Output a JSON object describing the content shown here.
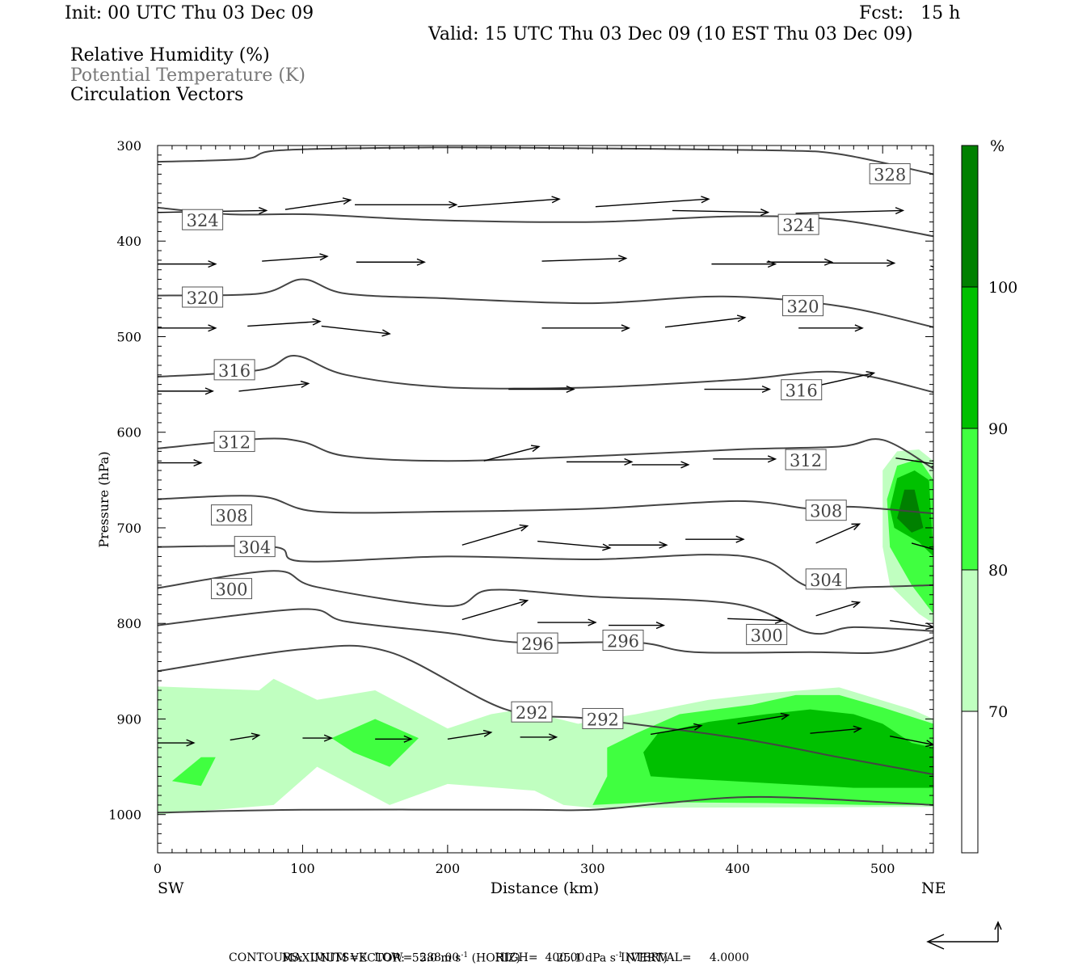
{
  "header": {
    "init": "Init: 00 UTC Thu 03 Dec 09",
    "fcst": "Fcst:   15 h",
    "valid": "Valid: 15 UTC Thu 03 Dec 09 (10 EST Thu 03 Dec 09)",
    "fields": [
      "Relative Humidity (%)",
      "Potential Temperature (K)",
      "Circulation Vectors"
    ]
  },
  "chart_data": {
    "type": "contour-cross-section",
    "xlabel": "Distance (km)",
    "ylabel": "Pressure (hPa)",
    "x_left_label": "SW",
    "x_right_label": "NE",
    "xlim": [
      0,
      535
    ],
    "ylim": [
      1040,
      300
    ],
    "x_ticks": [
      0,
      100,
      200,
      300,
      400,
      500
    ],
    "y_ticks": [
      300,
      400,
      500,
      600,
      700,
      800,
      900,
      1000
    ],
    "colorbar": {
      "unit": "%",
      "levels": [
        70,
        80,
        90,
        100
      ],
      "colors": [
        "#ffffff",
        "#c0ffc0",
        "#40ff40",
        "#00c000",
        "#008000"
      ]
    },
    "theta_labels": [
      {
        "value": "328",
        "x": 505,
        "p": 330
      },
      {
        "value": "324",
        "x": 31,
        "p": 378
      },
      {
        "value": "324",
        "x": 442,
        "p": 383
      },
      {
        "value": "320",
        "x": 31,
        "p": 459
      },
      {
        "value": "320",
        "x": 445,
        "p": 468
      },
      {
        "value": "316",
        "x": 53,
        "p": 535
      },
      {
        "value": "316",
        "x": 444,
        "p": 556
      },
      {
        "value": "312",
        "x": 53,
        "p": 610
      },
      {
        "value": "312",
        "x": 447,
        "p": 629
      },
      {
        "value": "308",
        "x": 51,
        "p": 687
      },
      {
        "value": "308",
        "x": 461,
        "p": 682
      },
      {
        "value": "304",
        "x": 67,
        "p": 720
      },
      {
        "value": "304",
        "x": 461,
        "p": 754
      },
      {
        "value": "300",
        "x": 51,
        "p": 764
      },
      {
        "value": "300",
        "x": 420,
        "p": 812
      },
      {
        "value": "296",
        "x": 262,
        "p": 821
      },
      {
        "value": "296",
        "x": 321,
        "p": 818
      },
      {
        "value": "292",
        "x": 258,
        "p": 893
      },
      {
        "value": "292",
        "x": 307,
        "p": 900
      }
    ],
    "theta_lines": [
      {
        "value": 328,
        "pts": [
          [
            0,
            317
          ],
          [
            60,
            314
          ],
          [
            85,
            305
          ],
          [
            190,
            302
          ],
          [
            300,
            303
          ],
          [
            420,
            305
          ],
          [
            470,
            309
          ],
          [
            535,
            330
          ]
        ]
      },
      {
        "value": 324,
        "pts": [
          [
            0,
            365
          ],
          [
            50,
            372
          ],
          [
            105,
            372
          ],
          [
            190,
            378
          ],
          [
            300,
            380
          ],
          [
            400,
            374
          ],
          [
            470,
            378
          ],
          [
            535,
            395
          ]
        ]
      },
      {
        "value": 320,
        "pts": [
          [
            0,
            457
          ],
          [
            70,
            455
          ],
          [
            100,
            440
          ],
          [
            130,
            455
          ],
          [
            200,
            460
          ],
          [
            300,
            465
          ],
          [
            390,
            458
          ],
          [
            470,
            468
          ],
          [
            535,
            490
          ]
        ]
      },
      {
        "value": 316,
        "pts": [
          [
            0,
            542
          ],
          [
            70,
            535
          ],
          [
            95,
            520
          ],
          [
            130,
            540
          ],
          [
            200,
            553
          ],
          [
            300,
            553
          ],
          [
            400,
            545
          ],
          [
            470,
            537
          ],
          [
            535,
            558
          ]
        ]
      },
      {
        "value": 312,
        "pts": [
          [
            0,
            617
          ],
          [
            70,
            607
          ],
          [
            100,
            610
          ],
          [
            130,
            625
          ],
          [
            200,
            630
          ],
          [
            300,
            625
          ],
          [
            400,
            618
          ],
          [
            470,
            615
          ],
          [
            500,
            608
          ],
          [
            535,
            638
          ]
        ]
      },
      {
        "value": 308,
        "pts": [
          [
            0,
            670
          ],
          [
            70,
            667
          ],
          [
            110,
            683
          ],
          [
            200,
            683
          ],
          [
            300,
            680
          ],
          [
            400,
            672
          ],
          [
            450,
            680
          ],
          [
            480,
            678
          ],
          [
            535,
            685
          ]
        ]
      },
      {
        "value": 304,
        "pts": [
          [
            0,
            720
          ],
          [
            80,
            720
          ],
          [
            100,
            735
          ],
          [
            200,
            730
          ],
          [
            300,
            733
          ],
          [
            380,
            728
          ],
          [
            420,
            735
          ],
          [
            450,
            762
          ],
          [
            490,
            762
          ],
          [
            535,
            760
          ]
        ]
      },
      {
        "value": 300,
        "pts": [
          [
            0,
            763
          ],
          [
            80,
            745
          ],
          [
            110,
            762
          ],
          [
            200,
            782
          ],
          [
            230,
            765
          ],
          [
            300,
            772
          ],
          [
            400,
            780
          ],
          [
            450,
            810
          ],
          [
            480,
            804
          ],
          [
            535,
            808
          ]
        ]
      },
      {
        "value": 296,
        "pts": [
          [
            0,
            802
          ],
          [
            100,
            785
          ],
          [
            130,
            798
          ],
          [
            200,
            810
          ],
          [
            250,
            820
          ],
          [
            330,
            820
          ],
          [
            370,
            830
          ],
          [
            450,
            830
          ],
          [
            500,
            830
          ],
          [
            535,
            815
          ]
        ]
      },
      {
        "value": 292,
        "pts": [
          [
            0,
            850
          ],
          [
            100,
            827
          ],
          [
            160,
            830
          ],
          [
            240,
            890
          ],
          [
            300,
            900
          ],
          [
            400,
            920
          ],
          [
            470,
            940
          ],
          [
            535,
            958
          ]
        ]
      },
      {
        "value": 288,
        "pts": [
          [
            0,
            998
          ],
          [
            100,
            995
          ],
          [
            250,
            995
          ],
          [
            300,
            995
          ],
          [
            350,
            988
          ],
          [
            400,
            982
          ],
          [
            450,
            983
          ],
          [
            535,
            990
          ]
        ]
      }
    ],
    "humidity_regions": [
      {
        "level": 70,
        "pts": [
          [
            0,
            866
          ],
          [
            70,
            870
          ],
          [
            80,
            858
          ],
          [
            110,
            880
          ],
          [
            150,
            870
          ],
          [
            200,
            910
          ],
          [
            230,
            895
          ],
          [
            250,
            890
          ],
          [
            290,
            905
          ],
          [
            330,
            895
          ],
          [
            380,
            880
          ],
          [
            420,
            873
          ],
          [
            470,
            867
          ],
          [
            520,
            890
          ],
          [
            535,
            900
          ],
          [
            535,
            992
          ],
          [
            300,
            993
          ],
          [
            280,
            990
          ],
          [
            260,
            975
          ],
          [
            200,
            968
          ],
          [
            160,
            990
          ],
          [
            110,
            950
          ],
          [
            80,
            990
          ],
          [
            0,
            1000
          ]
        ]
      },
      {
        "level": 80,
        "pts": [
          [
            310,
            930
          ],
          [
            330,
            915
          ],
          [
            360,
            895
          ],
          [
            410,
            885
          ],
          [
            440,
            875
          ],
          [
            470,
            875
          ],
          [
            500,
            888
          ],
          [
            535,
            905
          ],
          [
            535,
            990
          ],
          [
            490,
            990
          ],
          [
            420,
            988
          ],
          [
            340,
            987
          ],
          [
            300,
            990
          ],
          [
            310,
            960
          ]
        ]
      },
      {
        "level": 90,
        "pts": [
          [
            335,
            935
          ],
          [
            345,
            915
          ],
          [
            380,
            903
          ],
          [
            420,
            895
          ],
          [
            450,
            890
          ],
          [
            480,
            895
          ],
          [
            500,
            905
          ],
          [
            520,
            925
          ],
          [
            535,
            930
          ],
          [
            535,
            972
          ],
          [
            480,
            972
          ],
          [
            420,
            967
          ],
          [
            360,
            962
          ],
          [
            340,
            960
          ]
        ]
      },
      {
        "level": 80,
        "pts": [
          [
            120,
            920
          ],
          [
            150,
            900
          ],
          [
            180,
            920
          ],
          [
            160,
            950
          ],
          [
            135,
            935
          ]
        ]
      },
      {
        "level": 80,
        "pts": [
          [
            10,
            965
          ],
          [
            30,
            940
          ],
          [
            40,
            940
          ],
          [
            30,
            970
          ]
        ]
      },
      {
        "level": 70,
        "pts": [
          [
            500,
            640
          ],
          [
            510,
            620
          ],
          [
            525,
            618
          ],
          [
            535,
            630
          ],
          [
            535,
            800
          ],
          [
            525,
            790
          ],
          [
            505,
            760
          ],
          [
            500,
            720
          ]
        ]
      },
      {
        "level": 80,
        "pts": [
          [
            503,
            670
          ],
          [
            510,
            635
          ],
          [
            525,
            628
          ],
          [
            535,
            650
          ],
          [
            535,
            790
          ],
          [
            520,
            760
          ],
          [
            505,
            720
          ]
        ]
      },
      {
        "level": 90,
        "pts": [
          [
            505,
            680
          ],
          [
            510,
            648
          ],
          [
            522,
            640
          ],
          [
            532,
            650
          ],
          [
            535,
            730
          ],
          [
            525,
            715
          ],
          [
            508,
            700
          ]
        ]
      },
      {
        "level": 100,
        "pts": [
          [
            510,
            690
          ],
          [
            515,
            660
          ],
          [
            522,
            660
          ],
          [
            528,
            700
          ],
          [
            520,
            705
          ]
        ]
      }
    ],
    "vectors": [
      {
        "x": 0,
        "p": 370,
        "dx": 75,
        "dp": -2
      },
      {
        "x": 88,
        "p": 367,
        "dx": 45,
        "dp": -10
      },
      {
        "x": 136,
        "p": 362,
        "dx": 70,
        "dp": 0
      },
      {
        "x": 207,
        "p": 364,
        "dx": 70,
        "dp": -8
      },
      {
        "x": 302,
        "p": 364,
        "dx": 78,
        "dp": -8
      },
      {
        "x": 355,
        "p": 368,
        "dx": 66,
        "dp": 2
      },
      {
        "x": 440,
        "p": 371,
        "dx": 74,
        "dp": -3
      },
      {
        "x": 538,
        "p": 372,
        "dx": 30,
        "dp": 22
      },
      {
        "x": 0,
        "p": 424,
        "dx": 40,
        "dp": 0
      },
      {
        "x": 72,
        "p": 421,
        "dx": 45,
        "dp": -5
      },
      {
        "x": 137,
        "p": 422,
        "dx": 47,
        "dp": 0
      },
      {
        "x": 265,
        "p": 421,
        "dx": 58,
        "dp": -3
      },
      {
        "x": 382,
        "p": 424,
        "dx": 44,
        "dp": 0
      },
      {
        "x": 420,
        "p": 422,
        "dx": 45,
        "dp": 0
      },
      {
        "x": 463,
        "p": 423,
        "dx": 45,
        "dp": 0
      },
      {
        "x": 533,
        "p": 426,
        "dx": 30,
        "dp": 14
      },
      {
        "x": 0,
        "p": 491,
        "dx": 40,
        "dp": 0
      },
      {
        "x": 62,
        "p": 489,
        "dx": 50,
        "dp": -5
      },
      {
        "x": 113,
        "p": 489,
        "dx": 47,
        "dp": 8
      },
      {
        "x": 265,
        "p": 491,
        "dx": 60,
        "dp": 0
      },
      {
        "x": 350,
        "p": 490,
        "dx": 55,
        "dp": -10
      },
      {
        "x": 442,
        "p": 491,
        "dx": 44,
        "dp": 0
      },
      {
        "x": 0,
        "p": 557,
        "dx": 38,
        "dp": 0
      },
      {
        "x": 56,
        "p": 557,
        "dx": 48,
        "dp": -8
      },
      {
        "x": 242,
        "p": 555,
        "dx": 45,
        "dp": 0
      },
      {
        "x": 377,
        "p": 555,
        "dx": 45,
        "dp": 0
      },
      {
        "x": 450,
        "p": 553,
        "dx": 44,
        "dp": -15
      },
      {
        "x": 0,
        "p": 632,
        "dx": 30,
        "dp": 0
      },
      {
        "x": 225,
        "p": 630,
        "dx": 38,
        "dp": -15
      },
      {
        "x": 282,
        "p": 631,
        "dx": 45,
        "dp": 0
      },
      {
        "x": 327,
        "p": 634,
        "dx": 39,
        "dp": 0
      },
      {
        "x": 383,
        "p": 628,
        "dx": 43,
        "dp": 0
      },
      {
        "x": 509,
        "p": 627,
        "dx": 30,
        "dp": 7
      },
      {
        "x": 210,
        "p": 718,
        "dx": 45,
        "dp": -20
      },
      {
        "x": 262,
        "p": 714,
        "dx": 50,
        "dp": 7
      },
      {
        "x": 311,
        "p": 718,
        "dx": 40,
        "dp": 0
      },
      {
        "x": 364,
        "p": 712,
        "dx": 40,
        "dp": 0
      },
      {
        "x": 454,
        "p": 716,
        "dx": 30,
        "dp": -20
      },
      {
        "x": 520,
        "p": 716,
        "dx": 35,
        "dp": 15
      },
      {
        "x": 210,
        "p": 796,
        "dx": 45,
        "dp": -20
      },
      {
        "x": 262,
        "p": 799,
        "dx": 40,
        "dp": 0
      },
      {
        "x": 311,
        "p": 802,
        "dx": 38,
        "dp": 0
      },
      {
        "x": 393,
        "p": 795,
        "dx": 38,
        "dp": 2
      },
      {
        "x": 454,
        "p": 792,
        "dx": 30,
        "dp": -14
      },
      {
        "x": 505,
        "p": 797,
        "dx": 30,
        "dp": 7
      },
      {
        "x": 0,
        "p": 925,
        "dx": 25,
        "dp": 0
      },
      {
        "x": 50,
        "p": 922,
        "dx": 20,
        "dp": -5
      },
      {
        "x": 100,
        "p": 920,
        "dx": 20,
        "dp": 0
      },
      {
        "x": 150,
        "p": 921,
        "dx": 25,
        "dp": 0
      },
      {
        "x": 200,
        "p": 921,
        "dx": 30,
        "dp": -7
      },
      {
        "x": 250,
        "p": 919,
        "dx": 25,
        "dp": 0
      },
      {
        "x": 340,
        "p": 916,
        "dx": 35,
        "dp": -9
      },
      {
        "x": 400,
        "p": 905,
        "dx": 35,
        "dp": -9
      },
      {
        "x": 450,
        "p": 915,
        "dx": 35,
        "dp": -5
      },
      {
        "x": 505,
        "p": 918,
        "dx": 30,
        "dp": 9
      }
    ],
    "footer": {
      "max_label": "MAXIMUM VECTOR:",
      "horiz": "55.0 m s",
      "horiz_unit": "(HORIZ)",
      "vert": "25.1 dPa s",
      "vert_unit": "(VERT)",
      "exponent": "-1",
      "contours": "CONTOURS:  UNITS=K  LOW=  288.00          HIGH=  400.00          INTERVAL=     4.0000"
    }
  }
}
